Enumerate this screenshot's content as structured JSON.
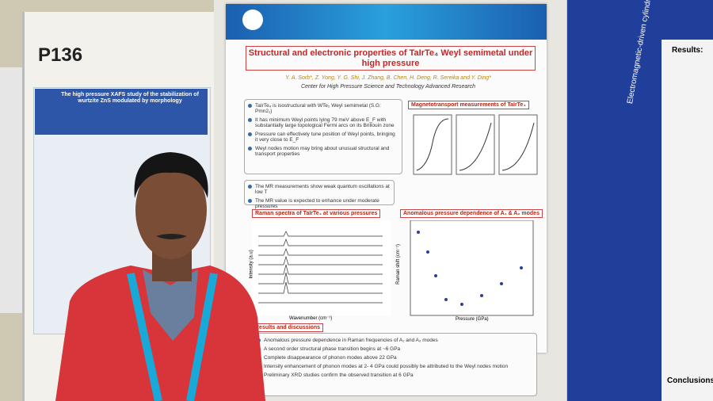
{
  "left_board": {
    "label": "P136"
  },
  "left_poster": {
    "title": "The high pressure XAFS study of the stabilization of wurtzite ZnS modulated by morphology"
  },
  "center_poster": {
    "title": "Structural and electronic properties of TaIrTe₄ Weyl semimetal under high pressure",
    "authors": "Y. A. Sorb*, Z. Yong, Y. G. Shi, J. Zhang, B. Chen, H. Deng, R. Sereika and Y. Ding*",
    "affiliation": "Center for High Pressure Science and Technology Advanced Research",
    "intro": [
      "TaIrTe₄ is isostructural with WTe₂ Weyl semimetal (S.G: Pmn2₁)",
      "It has minimum Weyl points lying 79 meV above E_F with substantially large topological Fermi arcs on its Brillouin zone",
      "Pressure can effectively tune position of Weyl points, bringing it very close to E_F",
      "Weyl nodes motion may bring about unusual structural and transport properties"
    ],
    "mr_notes": [
      "The MR measurements show weak quantum oscillations at low T",
      "The MR value is expected to enhance under moderate pressures"
    ],
    "sections": {
      "magneto": "Magnetotransport measurements of TaIrTe₄",
      "raman": "Raman spectra of TaIrTe₄ at various pressures",
      "anomalous": "Anomalous pressure dependence of A₁ & A₂ modes",
      "results": "Results and discussions"
    },
    "axes": {
      "raman_x": "Wavenumber (cm⁻¹)",
      "raman_y": "Intensity (a.u)",
      "anom_x": "Pressure (GPa)",
      "anom_y": "Raman shift (cm⁻¹)"
    },
    "results": [
      "Anomalous pressure dependence in Raman frequencies of A₁ and A₂ modes",
      "A second order structural phase transition begins at ~6 GPa",
      "Complete disappearance of phonon modes above 22 GPa",
      "Intensity enhancement of phonon modes at 2- 4 GPa could possibly be attributed to the Weyl nodes motion",
      "Preliminary XRD studies confirm the observed transition at 6 GPa"
    ]
  },
  "right_poster": {
    "title": "Electromagnetic-driven cylindrical",
    "results": "Results:",
    "conclusions": "Conclusions:"
  }
}
